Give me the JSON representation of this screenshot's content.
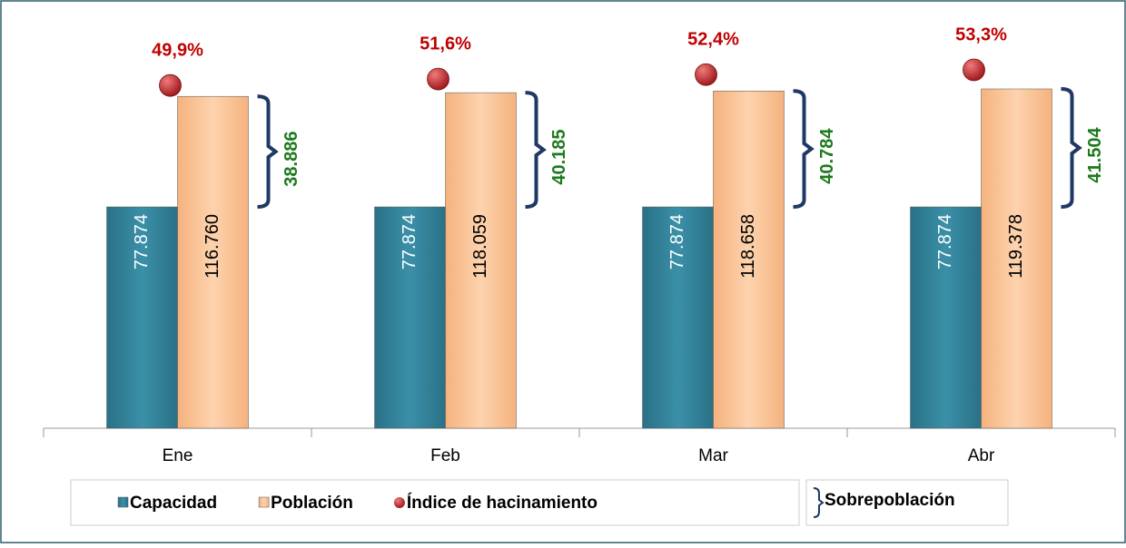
{
  "chart_data": {
    "type": "bar",
    "categories": [
      "Ene",
      "Feb",
      "Mar",
      "Abr"
    ],
    "series": [
      {
        "name": "Capacidad",
        "type": "bar",
        "color": "#31849b",
        "values": [
          77874,
          77874,
          77874,
          77874
        ],
        "value_labels": [
          "77.874",
          "77.874",
          "77.874",
          "77.874"
        ]
      },
      {
        "name": "Población",
        "type": "bar",
        "color": "#fac090",
        "values": [
          116760,
          118059,
          118658,
          119378
        ],
        "value_labels": [
          "116.760",
          "118.059",
          "118.658",
          "119.378"
        ]
      },
      {
        "name": "Índice de hacinamiento",
        "type": "point",
        "color": "#c0282d",
        "values": [
          49.9,
          51.6,
          52.4,
          53.3
        ],
        "value_labels": [
          "49,9%",
          "51,6%",
          "52,4%",
          "53,3%"
        ]
      },
      {
        "name": "Sobrepoblación",
        "type": "bracket",
        "color": "#1f3864",
        "values": [
          38886,
          40185,
          40784,
          41504
        ],
        "value_labels": [
          "38.886",
          "40.185",
          "40.784",
          "41.504"
        ]
      }
    ]
  }
}
